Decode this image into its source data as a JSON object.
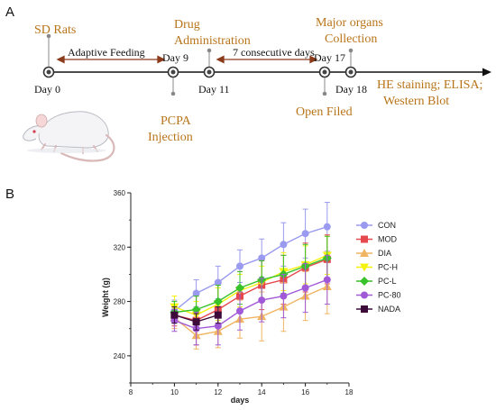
{
  "panel_a": {
    "letter": "A",
    "events": {
      "sd_rats": "SD Rats",
      "adaptive_feeding": "Adaptive Feeding",
      "drug_line1": "Drug",
      "drug_line2": "Administration",
      "consecutive": "7 consecutive  days",
      "organs_line1": "Major organs",
      "organs_line2": "Collection",
      "assays_line1": "HE staining; ELISA;",
      "assays_line2": "Western Blot",
      "pcpa_line1": "PCPA",
      "pcpa_line2": "Injection",
      "open_field": "Open Filed"
    },
    "days": {
      "d0": "Day 0",
      "d9": "Day 9",
      "d11": "Day 11",
      "d17": "Day 17",
      "d18": "Day 18"
    },
    "icon": "rat-illustration"
  },
  "panel_b": {
    "letter": "B"
  },
  "chart_data": {
    "type": "line",
    "xlabel": "days",
    "ylabel": "Weight (g)",
    "xlim": [
      8,
      18
    ],
    "ylim": [
      220,
      360
    ],
    "xticks": [
      "8",
      "10",
      "12",
      "14",
      "16",
      "18"
    ],
    "yticks": [
      "240",
      "280",
      "320",
      "360"
    ],
    "x": [
      10,
      11,
      12,
      13,
      14,
      15,
      16,
      17
    ],
    "legend_position": "right",
    "series": [
      {
        "name": "CON",
        "color": "#9a9af0",
        "marker": "circle",
        "values": [
          273,
          286,
          294,
          306,
          312,
          322,
          330,
          335
        ],
        "err": [
          8,
          10,
          12,
          12,
          14,
          16,
          18,
          18
        ]
      },
      {
        "name": "MOD",
        "color": "#e5484d",
        "marker": "square",
        "values": [
          270,
          266,
          274,
          284,
          292,
          296,
          305,
          311
        ],
        "err": [
          8,
          18,
          18,
          18,
          18,
          18,
          18,
          18
        ]
      },
      {
        "name": "DIA",
        "color": "#f0b463",
        "marker": "triangle",
        "values": [
          268,
          255,
          258,
          267,
          269,
          276,
          284,
          291
        ],
        "err": [
          8,
          10,
          12,
          14,
          18,
          18,
          18,
          20
        ]
      },
      {
        "name": "PC-H",
        "color": "#f5f20f",
        "marker": "triangle-down",
        "values": [
          276,
          270,
          278,
          288,
          294,
          302,
          307,
          314
        ],
        "err": [
          8,
          10,
          12,
          12,
          12,
          14,
          14,
          14
        ]
      },
      {
        "name": "PC-L",
        "color": "#39c22b",
        "marker": "diamond",
        "values": [
          272,
          274,
          280,
          290,
          296,
          300,
          306,
          312
        ],
        "err": [
          8,
          10,
          12,
          12,
          14,
          14,
          16,
          16
        ]
      },
      {
        "name": "PC-80",
        "color": "#a05ad8",
        "marker": "circle",
        "values": [
          266,
          260,
          262,
          273,
          281,
          284,
          290,
          296
        ],
        "err": [
          8,
          12,
          14,
          14,
          16,
          16,
          18,
          18
        ]
      },
      {
        "name": "NADA",
        "color": "#3d0b3a",
        "marker": "square",
        "values": [
          270,
          265,
          270,
          null,
          null,
          null,
          null,
          null
        ],
        "err": [
          6,
          6,
          6,
          null,
          null,
          null,
          null,
          null
        ]
      }
    ]
  }
}
